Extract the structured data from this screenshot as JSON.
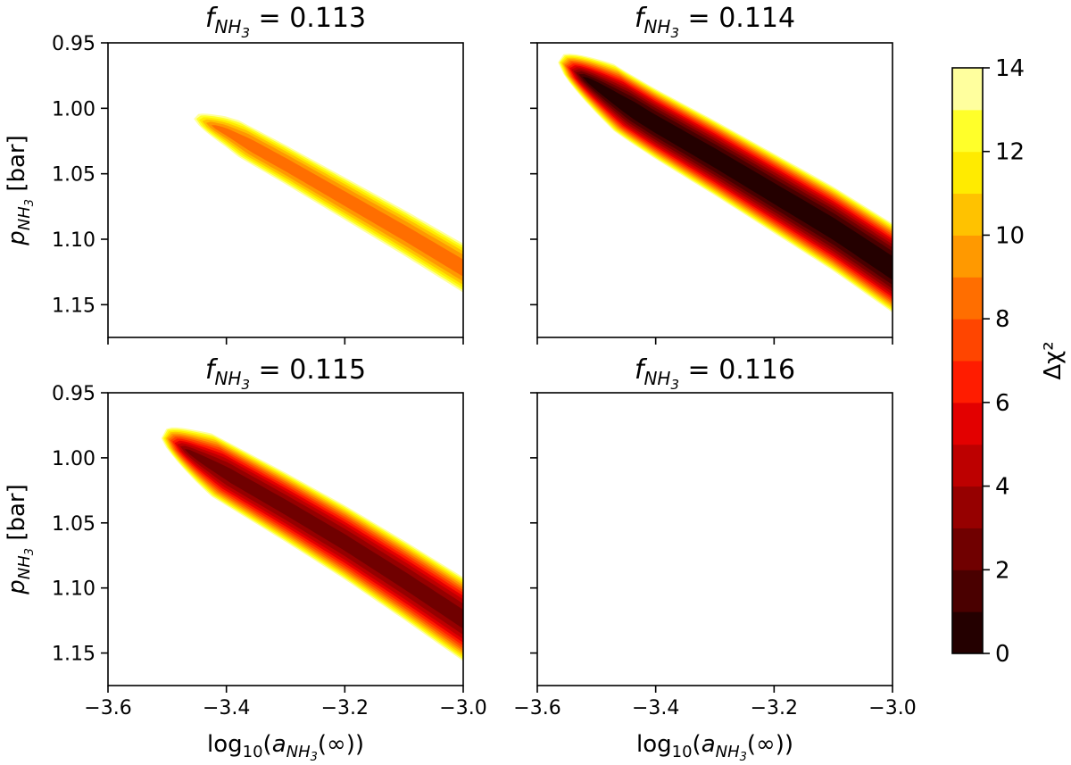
{
  "chart_data": {
    "type": "contour",
    "colorscale": "hot",
    "colorbar": {
      "label": "Δχ²",
      "range": [
        0,
        14
      ],
      "levels": [
        0,
        1,
        2,
        3,
        4,
        5,
        6,
        7,
        8,
        9,
        10,
        11,
        12,
        13,
        14
      ],
      "ticks": [
        "0",
        "2",
        "4",
        "6",
        "8",
        "10",
        "12",
        "14"
      ],
      "colors": [
        "#240000",
        "#4a0000",
        "#700000",
        "#960000",
        "#bd0000",
        "#e30000",
        "#ff1c00",
        "#ff4500",
        "#ff6e00",
        "#ff9900",
        "#ffc200",
        "#ffeb00",
        "#ffff2a",
        "#ffff9e"
      ]
    },
    "xlabel": "log10(aNH3(∞))",
    "ylabel": "pNH3 [bar]",
    "xlim": [
      -3.6,
      -3.0
    ],
    "ylim": [
      1.175,
      0.95
    ],
    "x_ticks": [
      "−3.6",
      "−3.4",
      "−3.2",
      "−3.0"
    ],
    "y_ticks": [
      "0.95",
      "1.00",
      "1.05",
      "1.10",
      "1.15"
    ],
    "panels": [
      {
        "title_prefix": "f",
        "title_sub": "NH",
        "title_sub2": "3",
        "title_value": "= 0.113",
        "fNH3": 0.113,
        "valley": [
          [
            -3.45,
            1.008
          ],
          [
            -3.4,
            1.018
          ],
          [
            -3.3,
            1.043
          ],
          [
            -3.2,
            1.069
          ],
          [
            -3.1,
            1.095
          ],
          [
            -3.0,
            1.122
          ]
        ],
        "min_value": 8.3,
        "range_x": [
          -3.455,
          -3.0
        ],
        "width_scale": 0.55
      },
      {
        "title_prefix": "f",
        "title_sub": "NH",
        "title_sub2": "3",
        "title_value": "= 0.114",
        "fNH3": 0.114,
        "valley": [
          [
            -3.56,
            0.965
          ],
          [
            -3.5,
            0.983
          ],
          [
            -3.45,
            0.998
          ],
          [
            -3.4,
            1.012
          ],
          [
            -3.35,
            1.025
          ],
          [
            -3.3,
            1.038
          ],
          [
            -3.2,
            1.065
          ],
          [
            -3.1,
            1.092
          ],
          [
            -3.0,
            1.122
          ]
        ],
        "min_value": 0.0,
        "range_x": [
          -3.565,
          -3.0
        ],
        "width_scale": 1.0
      },
      {
        "title_prefix": "f",
        "title_sub": "NH",
        "title_sub2": "3",
        "title_value": "= 0.115",
        "fNH3": 0.115,
        "valley": [
          [
            -3.5,
            0.985
          ],
          [
            -3.45,
            0.999
          ],
          [
            -3.4,
            1.012
          ],
          [
            -3.35,
            1.025
          ],
          [
            -3.3,
            1.038
          ],
          [
            -3.2,
            1.065
          ],
          [
            -3.1,
            1.094
          ],
          [
            -3.0,
            1.124
          ]
        ],
        "min_value": 2.4,
        "range_x": [
          -3.51,
          -3.0
        ],
        "width_scale": 0.95
      },
      {
        "title_prefix": "f",
        "title_sub": "NH",
        "title_sub2": "3",
        "title_value": "= 0.116",
        "fNH3": 0.116,
        "valley": [],
        "min_value": null,
        "range_x": null,
        "width_scale": 0
      }
    ]
  }
}
